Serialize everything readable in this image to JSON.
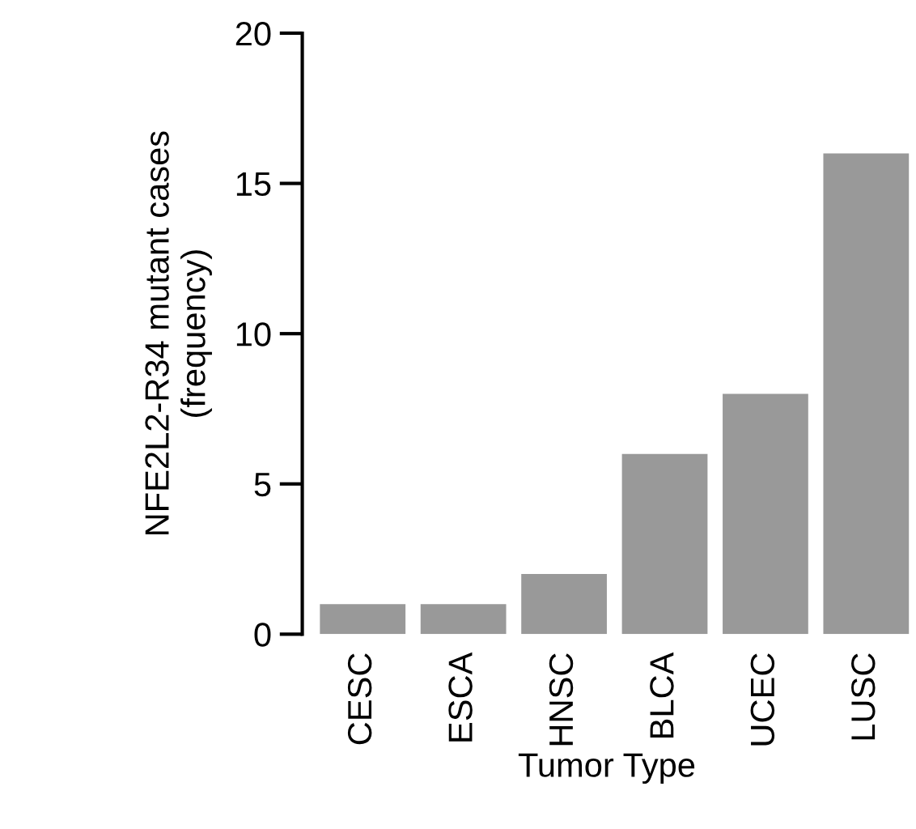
{
  "chart_data": {
    "type": "bar",
    "xlabel": "Tumor Type",
    "ylabel": "NFE2L2-R34 mutant cases\n(frequency)",
    "categories": [
      "CESC",
      "ESCA",
      "HNSC",
      "BLCA",
      "UCEC",
      "LUSC"
    ],
    "values": [
      1,
      1,
      2,
      6,
      8,
      16
    ],
    "color": "#999999",
    "ylim": [
      0,
      20
    ],
    "yticks": [
      0,
      5,
      10,
      15,
      20
    ],
    "grid": false,
    "legend": false
  }
}
